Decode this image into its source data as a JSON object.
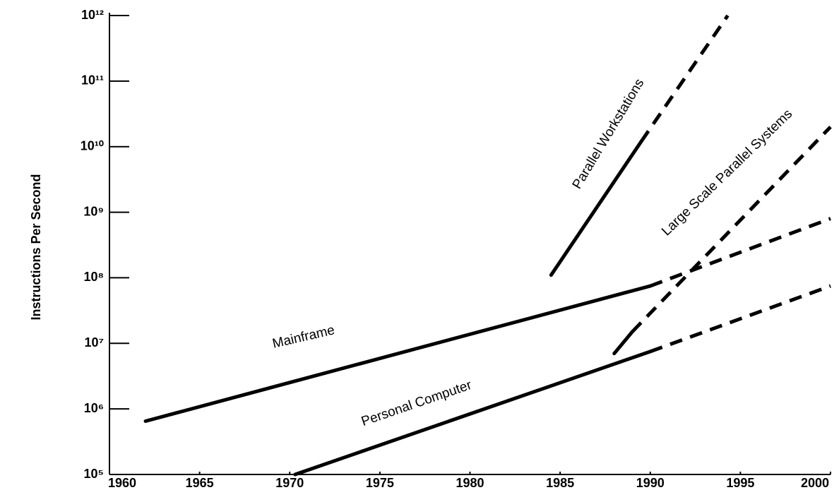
{
  "chart_data": {
    "type": "line",
    "y_axis_label": "Instructions Per Second",
    "log_y": true,
    "color": "#000000",
    "xlim": [
      1960,
      2000
    ],
    "xticks": [
      1960,
      1965,
      1970,
      1975,
      1980,
      1985,
      1990,
      1995,
      2000
    ],
    "ylim": [
      100000,
      1000000000000
    ],
    "yticks": [
      {
        "value": 100000,
        "label": "10⁵"
      },
      {
        "value": 1000000,
        "label": "10⁶"
      },
      {
        "value": 10000000,
        "label": "10⁷"
      },
      {
        "value": 100000000,
        "label": "10⁸"
      },
      {
        "value": 1000000000,
        "label": "10⁹"
      },
      {
        "value": 10000000000,
        "label": "10¹⁰"
      },
      {
        "value": 100000000000,
        "label": "10¹¹"
      },
      {
        "value": 1000000000000,
        "label": "10¹²"
      }
    ],
    "series": [
      {
        "name": "Mainframe",
        "x": [
          1962,
          1990,
          2000
        ],
        "values": [
          650000,
          75000000,
          800000000
        ],
        "projected_from": 1990
      },
      {
        "name": "Personal Computer",
        "x": [
          1970.3,
          1990,
          2000
        ],
        "values": [
          100000,
          7500000,
          75000000
        ],
        "projected_from": 1990
      },
      {
        "name": "Parallel Workstations",
        "x": [
          1988,
          1989,
          2000
        ],
        "values": [
          7000000,
          15000000,
          20000000000
        ],
        "projected_from": 1989
      },
      {
        "name": "Large Scale Parallel Systems",
        "x": [
          1984.5,
          1989.5,
          1994.3
        ],
        "values": [
          110000000,
          12000000000,
          1000000000000
        ],
        "projected_from": 1989.5
      }
    ]
  }
}
